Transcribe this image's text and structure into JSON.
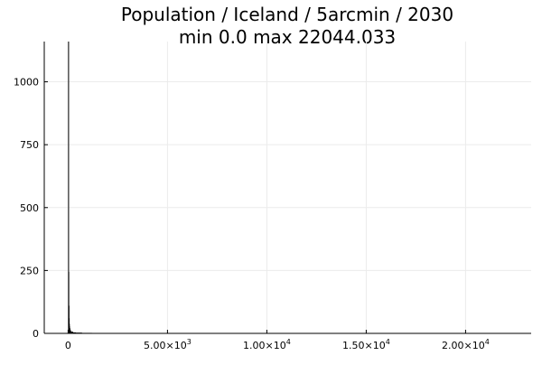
{
  "chart_data": {
    "type": "bar",
    "title_lines": [
      "Population / Iceland / 5arcmin / 2030",
      "min 0.0  max 22044.033"
    ],
    "xlabel": "",
    "ylabel": "",
    "xlim": [
      -1200,
      23300
    ],
    "ylim": [
      0,
      1160
    ],
    "grid": true,
    "legend": "none",
    "bar_color": "#000000",
    "grid_color": "#ebebeb",
    "x_ticks": [
      {
        "value": 0,
        "mantissa": "0",
        "exponent": ""
      },
      {
        "value": 5000,
        "mantissa": "5.00×10",
        "exponent": "3"
      },
      {
        "value": 10000,
        "mantissa": "1.00×10",
        "exponent": "4"
      },
      {
        "value": 15000,
        "mantissa": "1.50×10",
        "exponent": "4"
      },
      {
        "value": 20000,
        "mantissa": "2.00×10",
        "exponent": "4"
      }
    ],
    "y_ticks": [
      {
        "value": 0,
        "label": "0"
      },
      {
        "value": 250,
        "label": "250"
      },
      {
        "value": 500,
        "label": "500"
      },
      {
        "value": 750,
        "label": "750"
      },
      {
        "value": 1000,
        "label": "1000"
      }
    ],
    "bins": [
      {
        "x0": 0,
        "x1": 10,
        "count": 1160
      },
      {
        "x0": 10,
        "x1": 20,
        "count": 245
      },
      {
        "x0": 20,
        "x1": 30,
        "count": 110
      },
      {
        "x0": 30,
        "x1": 40,
        "count": 60
      },
      {
        "x0": 40,
        "x1": 50,
        "count": 38
      },
      {
        "x0": 50,
        "x1": 70,
        "count": 28
      },
      {
        "x0": 70,
        "x1": 100,
        "count": 20
      },
      {
        "x0": 100,
        "x1": 150,
        "count": 12
      },
      {
        "x0": 150,
        "x1": 250,
        "count": 7
      },
      {
        "x0": 250,
        "x1": 400,
        "count": 4
      },
      {
        "x0": 400,
        "x1": 700,
        "count": 3
      },
      {
        "x0": 700,
        "x1": 1200,
        "count": 2
      },
      {
        "x0": 1200,
        "x1": 2500,
        "count": 1
      },
      {
        "x0": 2500,
        "x1": 5000,
        "count": 1
      },
      {
        "x0": 5000,
        "x1": 10000,
        "count": 1
      },
      {
        "x0": 10000,
        "x1": 15000,
        "count": 1
      },
      {
        "x0": 15000,
        "x1": 22044,
        "count": 1
      }
    ]
  }
}
